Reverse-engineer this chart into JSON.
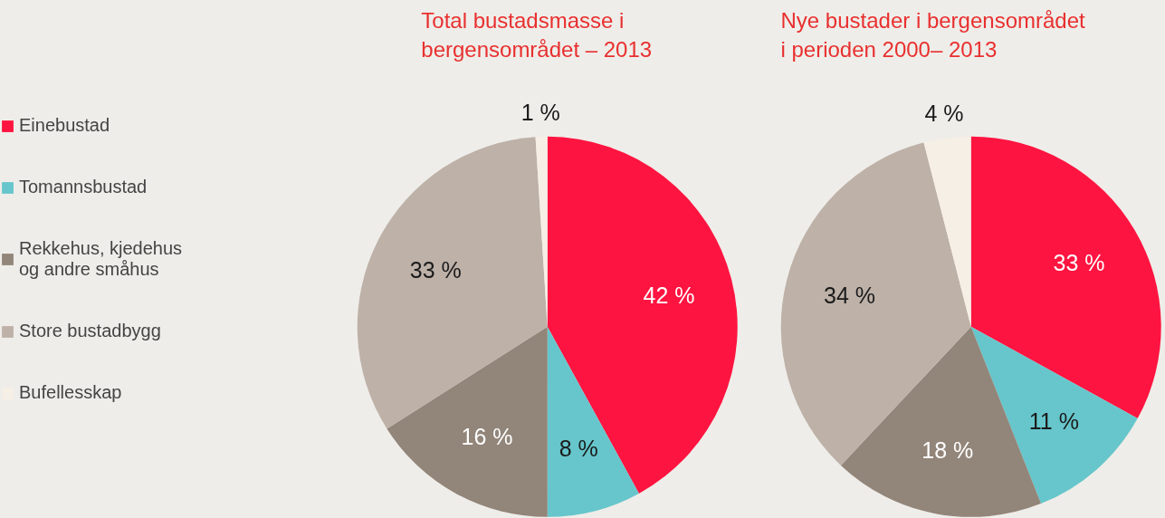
{
  "chart_data": [
    {
      "type": "pie",
      "title": "Total bustadsmasse i bergensområdet – 2013",
      "categories": [
        "Einebustad",
        "Tomannsbustad",
        "Rekkehus, kjedehus og andre småhus",
        "Store bustadbygg",
        "Bufellesskap"
      ],
      "values": [
        42,
        8,
        16,
        33,
        1
      ],
      "colors": [
        "#fe1440",
        "#66c6cb",
        "#928579",
        "#bdb1a8",
        "#f6efe6"
      ],
      "value_labels": [
        "42 %",
        "8 %",
        "16 %",
        "33 %",
        "1 %"
      ],
      "legend": "left"
    },
    {
      "type": "pie",
      "title": "Nye bustader i bergensområdet i perioden 2000– 2013",
      "values": [
        33,
        11,
        18,
        34,
        4
      ],
      "colors": [
        "#fe1440",
        "#66c6cb",
        "#928579",
        "#bdb1a8",
        "#f6efe6"
      ],
      "value_labels": [
        "33 %",
        "11 %",
        "18 %",
        "34 %",
        "4 %"
      ]
    }
  ]
}
